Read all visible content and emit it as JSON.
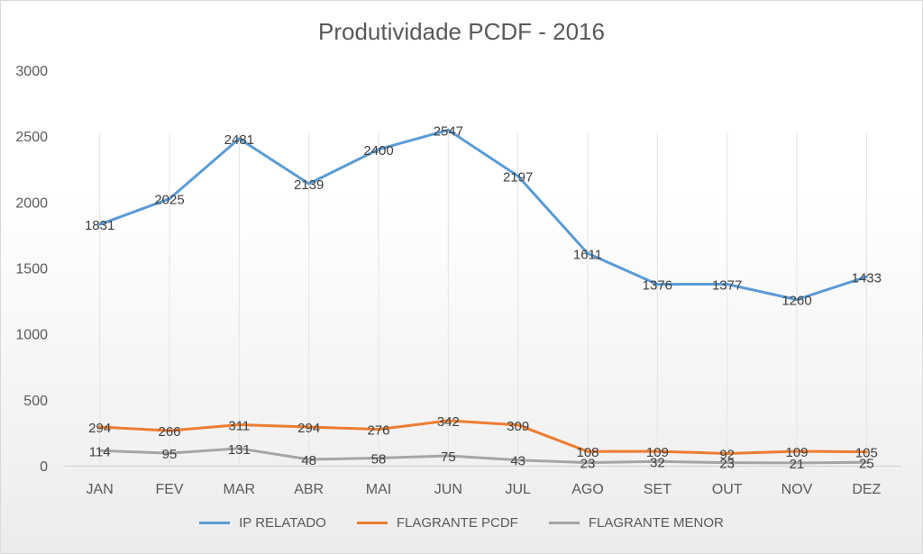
{
  "chart_data": {
    "type": "line",
    "title": "Produtividade  PCDF - 2016",
    "categories": [
      "JAN",
      "FEV",
      "MAR",
      "ABR",
      "MAI",
      "JUN",
      "JUL",
      "AGO",
      "SET",
      "OUT",
      "NOV",
      "DEZ"
    ],
    "ylim": [
      0,
      3000
    ],
    "yticks": [
      0,
      500,
      1000,
      1500,
      2000,
      2500,
      3000
    ],
    "grid": "vertical category lines",
    "legend": "bottom",
    "series": [
      {
        "name": "IP RELATADO",
        "color": "#5b9bd5",
        "values": [
          1831,
          2025,
          2481,
          2139,
          2400,
          2547,
          2197,
          1611,
          1376,
          1377,
          1260,
          1433
        ]
      },
      {
        "name": "FLAGRANTE PCDF",
        "color": "#ed7d31",
        "values": [
          294,
          266,
          311,
          294,
          276,
          342,
          309,
          108,
          109,
          92,
          109,
          105
        ]
      },
      {
        "name": "FLAGRANTE MENOR",
        "color": "#a5a5a5",
        "values": [
          114,
          95,
          131,
          48,
          58,
          75,
          43,
          23,
          32,
          23,
          21,
          25
        ]
      }
    ]
  }
}
